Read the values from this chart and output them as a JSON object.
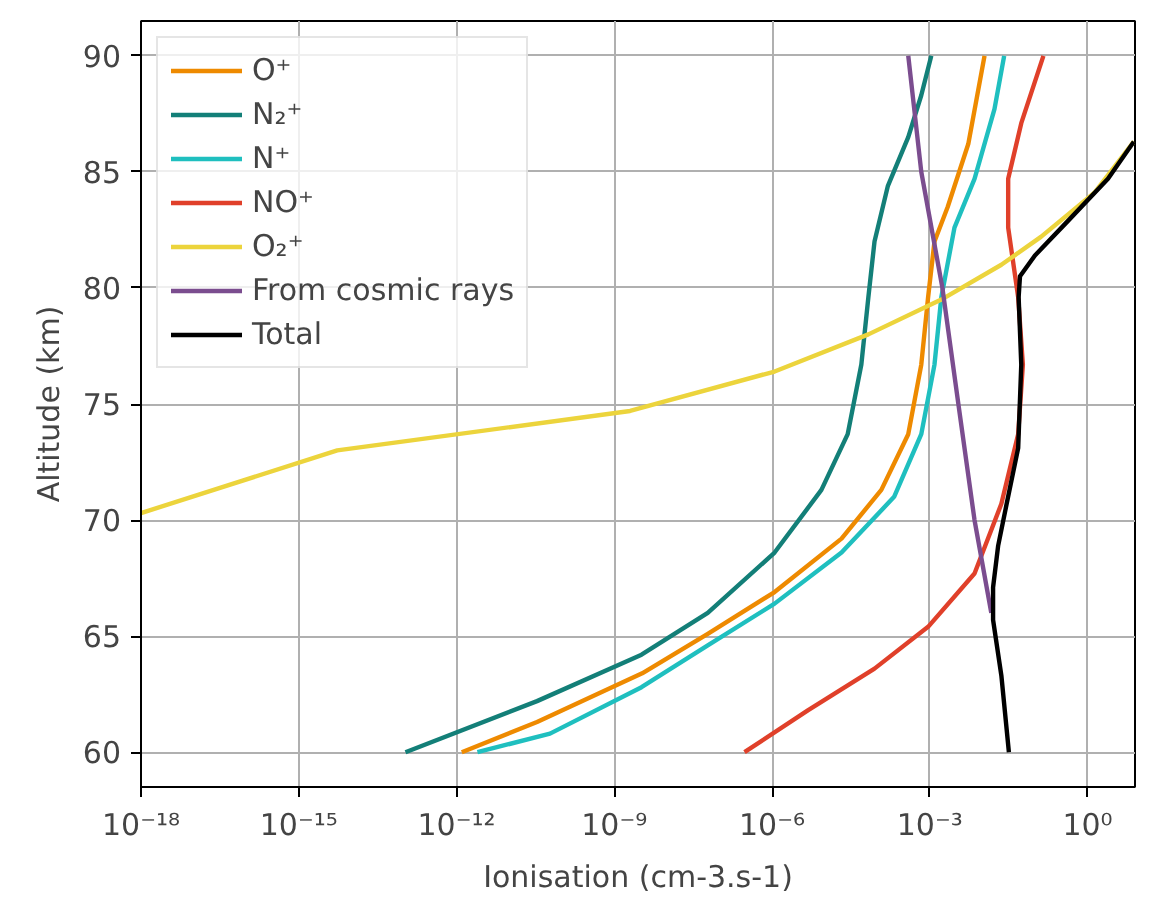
{
  "chart_data": {
    "type": "line",
    "xlabel": "Ionisation (cm-3.s-1)",
    "ylabel": "Altitude (km)",
    "log": "x",
    "grid": true,
    "legend": "top left",
    "line_style": "solid",
    "marker": "none",
    "xlim": [
      1e-18,
      8
    ],
    "ylim": [
      58.5,
      91.5
    ],
    "xticks": [
      {
        "value": 1e-18,
        "label": "10⁻¹⁸"
      },
      {
        "value": 1e-15,
        "label": "10⁻¹⁵"
      },
      {
        "value": 1e-12,
        "label": "10⁻¹²"
      },
      {
        "value": 1e-09,
        "label": "10⁻⁹"
      },
      {
        "value": 1e-06,
        "label": "10⁻⁶"
      },
      {
        "value": 0.001,
        "label": "10⁻³"
      },
      {
        "value": 1,
        "label": "10⁰"
      }
    ],
    "yticks": [
      60,
      65,
      70,
      75,
      80,
      85,
      90
    ],
    "series": [
      {
        "name": "O⁺",
        "color": "#ee8a00",
        "x": [
          1.26e-12,
          3.4e-11,
          3.4e-09,
          6e-08,
          1.12e-06,
          2.1e-05,
          0.00012,
          0.00039,
          0.00069,
          0.00093,
          0.00123,
          0.0022,
          0.0054,
          0.011
        ],
        "values": [
          60,
          61.3,
          63.4,
          65.1,
          66.9,
          69.2,
          71.3,
          73.7,
          76.7,
          79.6,
          82.0,
          83.5,
          86.2,
          90
        ]
      },
      {
        "name": "N₂⁺",
        "color": "#137f78",
        "x": [
          1.07e-13,
          3.4e-11,
          3.3e-09,
          6e-08,
          1.12e-06,
          8.7e-06,
          2.75e-05,
          5e-05,
          6.8e-05,
          8.9e-05,
          0.00016,
          0.00039,
          0.00069,
          0.00107
        ],
        "values": [
          60,
          62.2,
          64.2,
          66.0,
          68.6,
          71.3,
          73.7,
          76.7,
          79.6,
          82.0,
          84.4,
          86.5,
          88.3,
          90
        ]
      },
      {
        "name": "N⁺",
        "color": "#1fbfbf",
        "x": [
          2.5e-12,
          6e-11,
          3.3e-09,
          6e-08,
          1.12e-06,
          2.1e-05,
          0.00021,
          0.00069,
          0.00123,
          0.00166,
          0.00295,
          0.0071,
          0.017,
          0.026
        ],
        "values": [
          60,
          60.8,
          62.8,
          64.6,
          66.4,
          68.6,
          71.0,
          73.7,
          76.7,
          79.6,
          82.6,
          84.7,
          87.7,
          90
        ]
      },
      {
        "name": "NO⁺",
        "color": "#e0402a",
        "x": [
          3e-07,
          4.8e-06,
          8.9e-05,
          0.00093,
          0.0071,
          0.023,
          0.048,
          0.059,
          0.048,
          0.031,
          0.031,
          0.055,
          0.145
        ],
        "values": [
          60,
          61.8,
          63.6,
          65.4,
          67.7,
          70.7,
          73.7,
          76.7,
          79.6,
          82.6,
          84.7,
          87.1,
          90
        ]
      },
      {
        "name": "O₂⁺",
        "color": "#ecd43c",
        "x": [
          1e-18,
          5.4e-15,
          2e-09,
          1.12e-06,
          6.8e-05,
          0.00166,
          0.023,
          0.13,
          1.35,
          7.6
        ],
        "values": [
          70.3,
          73.0,
          74.7,
          76.4,
          78.0,
          79.5,
          81.0,
          82.2,
          84.1,
          86.3
        ]
      },
      {
        "name": "From cosmic rays",
        "color": "#7b4d8f",
        "x": [
          0.00039,
          0.00069,
          0.00174,
          0.0035,
          0.0071,
          0.0148
        ],
        "values": [
          90,
          85,
          80,
          75,
          70,
          66
        ]
      },
      {
        "name": "Total",
        "color": "#000000",
        "x": [
          0.032,
          0.023,
          0.016,
          0.016,
          0.02,
          0.029,
          0.048,
          0.055,
          0.049,
          0.052,
          0.1,
          0.43,
          2.45,
          7.6
        ],
        "values": [
          60,
          63.3,
          65.7,
          67.1,
          68.9,
          70.7,
          73.1,
          76.7,
          79.6,
          80.5,
          81.4,
          82.9,
          84.7,
          86.3
        ]
      }
    ]
  }
}
